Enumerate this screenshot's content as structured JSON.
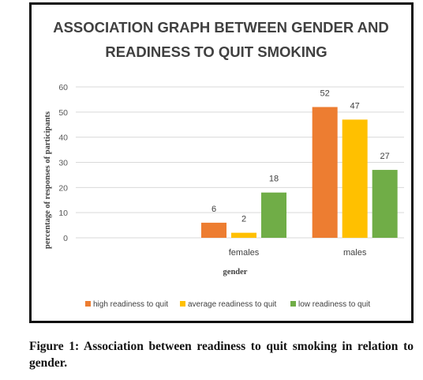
{
  "chart_data": {
    "type": "bar",
    "title_lines": [
      "ASSOCIATION GRAPH BETWEEN GENDER AND",
      "READINESS TO QUIT SMOKING"
    ],
    "xlabel": "gender",
    "ylabel": "percentage of responses of participants",
    "ylim": [
      0,
      60
    ],
    "yticks": [
      0,
      10,
      20,
      30,
      40,
      50,
      60
    ],
    "grid": true,
    "legend_position": "bottom",
    "categories": [
      "",
      "females",
      "males"
    ],
    "series": [
      {
        "name": "high readiness to quit",
        "color": "#ED7D31",
        "values": [
          null,
          6,
          52
        ]
      },
      {
        "name": "average readiness to quit",
        "color": "#FFC000",
        "values": [
          null,
          2,
          47
        ]
      },
      {
        "name": "low readiness to quit",
        "color": "#70AD47",
        "values": [
          null,
          18,
          27
        ]
      }
    ]
  },
  "caption": "Figure 1: Association between readiness to quit smoking in relation to gender."
}
